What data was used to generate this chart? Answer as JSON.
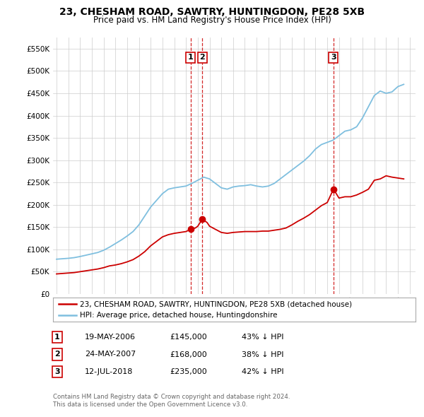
{
  "title": "23, CHESHAM ROAD, SAWTRY, HUNTINGDON, PE28 5XB",
  "subtitle": "Price paid vs. HM Land Registry's House Price Index (HPI)",
  "legend_line1": "23, CHESHAM ROAD, SAWTRY, HUNTINGDON, PE28 5XB (detached house)",
  "legend_line2": "HPI: Average price, detached house, Huntingdonshire",
  "footer1": "Contains HM Land Registry data © Crown copyright and database right 2024.",
  "footer2": "This data is licensed under the Open Government Licence v3.0.",
  "transactions": [
    {
      "num": 1,
      "date": "19-MAY-2006",
      "price": 145000,
      "pct": "43% ↓ HPI",
      "x_year": 2006.38
    },
    {
      "num": 2,
      "date": "24-MAY-2007",
      "price": 168000,
      "pct": "38% ↓ HPI",
      "x_year": 2007.39
    },
    {
      "num": 3,
      "date": "12-JUL-2018",
      "price": 235000,
      "pct": "42% ↓ HPI",
      "x_year": 2018.53
    }
  ],
  "hpi_color": "#7fbfdf",
  "price_color": "#cc0000",
  "dashed_color": "#cc0000",
  "grid_color": "#cccccc",
  "background_color": "#ffffff",
  "ylim": [
    0,
    575000
  ],
  "xlim_start": 1994.7,
  "xlim_end": 2025.5,
  "years_hpi": [
    1995.0,
    1995.5,
    1996.0,
    1996.5,
    1997.0,
    1997.5,
    1998.0,
    1998.5,
    1999.0,
    1999.5,
    2000.0,
    2000.5,
    2001.0,
    2001.5,
    2002.0,
    2002.5,
    2003.0,
    2003.5,
    2004.0,
    2004.5,
    2005.0,
    2005.5,
    2006.0,
    2006.5,
    2007.0,
    2007.5,
    2008.0,
    2008.5,
    2009.0,
    2009.5,
    2010.0,
    2010.5,
    2011.0,
    2011.5,
    2012.0,
    2012.5,
    2013.0,
    2013.5,
    2014.0,
    2014.5,
    2015.0,
    2015.5,
    2016.0,
    2016.5,
    2017.0,
    2017.5,
    2018.0,
    2018.5,
    2019.0,
    2019.5,
    2020.0,
    2020.5,
    2021.0,
    2021.5,
    2022.0,
    2022.5,
    2023.0,
    2023.5,
    2024.0,
    2024.5
  ],
  "hpi_values": [
    78000,
    79000,
    80000,
    81500,
    84000,
    87000,
    90000,
    93000,
    98000,
    105000,
    113000,
    121000,
    130000,
    140000,
    155000,
    175000,
    195000,
    210000,
    225000,
    235000,
    238000,
    240000,
    242000,
    248000,
    255000,
    262000,
    258000,
    248000,
    238000,
    235000,
    240000,
    242000,
    243000,
    245000,
    242000,
    240000,
    242000,
    248000,
    258000,
    268000,
    278000,
    288000,
    298000,
    310000,
    325000,
    335000,
    340000,
    345000,
    355000,
    365000,
    368000,
    375000,
    395000,
    420000,
    445000,
    455000,
    450000,
    453000,
    465000,
    470000
  ],
  "years_price": [
    1995.0,
    1995.5,
    1996.0,
    1996.5,
    1997.0,
    1997.5,
    1998.0,
    1998.5,
    1999.0,
    1999.5,
    2000.0,
    2000.5,
    2001.0,
    2001.5,
    2002.0,
    2002.5,
    2003.0,
    2003.5,
    2004.0,
    2004.5,
    2005.0,
    2005.5,
    2006.0,
    2006.38,
    2006.8,
    2007.0,
    2007.39,
    2007.8,
    2008.0,
    2008.5,
    2009.0,
    2009.5,
    2010.0,
    2010.5,
    2011.0,
    2011.5,
    2012.0,
    2012.5,
    2013.0,
    2013.5,
    2014.0,
    2014.5,
    2015.0,
    2015.5,
    2016.0,
    2016.5,
    2017.0,
    2017.5,
    2018.0,
    2018.53,
    2019.0,
    2019.5,
    2020.0,
    2020.5,
    2021.0,
    2021.5,
    2022.0,
    2022.5,
    2023.0,
    2023.5,
    2024.0,
    2024.5
  ],
  "price_values": [
    45000,
    46000,
    47000,
    48000,
    50000,
    52000,
    54000,
    56000,
    59000,
    63000,
    65000,
    68000,
    72000,
    77000,
    85000,
    95000,
    108000,
    118000,
    128000,
    133000,
    136000,
    138000,
    140000,
    145000,
    148000,
    152000,
    168000,
    160000,
    152000,
    145000,
    138000,
    136000,
    138000,
    139000,
    140000,
    140000,
    140000,
    141000,
    141000,
    143000,
    145000,
    148000,
    155000,
    163000,
    170000,
    178000,
    188000,
    198000,
    205000,
    235000,
    215000,
    218000,
    218000,
    222000,
    228000,
    235000,
    255000,
    258000,
    265000,
    262000,
    260000,
    258000
  ]
}
